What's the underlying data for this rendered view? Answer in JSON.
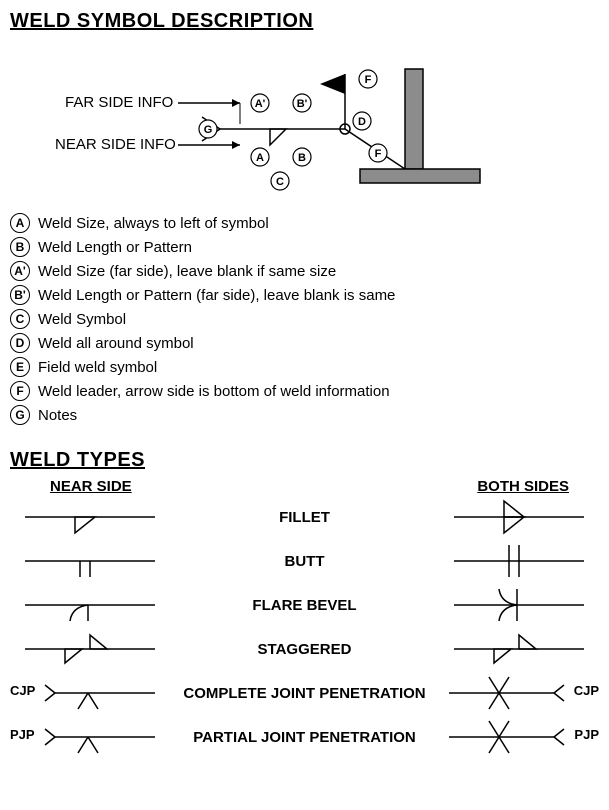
{
  "title1": "WELD SYMBOL DESCRIPTION",
  "title2": "WELD TYPES",
  "diagram": {
    "far_label": "FAR SIDE INFO",
    "near_label": "NEAR SIDE INFO",
    "bubbles": {
      "A": "A",
      "Ap": "A'",
      "B": "B",
      "Bp": "B'",
      "C": "C",
      "D": "D",
      "F": "F",
      "G": "G"
    },
    "joint_fill": "#8c8c8c",
    "flag_fill": "#000000"
  },
  "legend": [
    {
      "k": "A",
      "t": "Weld Size, always to left of symbol"
    },
    {
      "k": "B",
      "t": "Weld Length or Pattern"
    },
    {
      "k": "A'",
      "t": "Weld Size (far side), leave blank if same size"
    },
    {
      "k": "B'",
      "t": "Weld Length or Pattern (far side), leave blank is same"
    },
    {
      "k": "C",
      "t": "Weld Symbol"
    },
    {
      "k": "D",
      "t": "Weld all around symbol"
    },
    {
      "k": "E",
      "t": "Field weld symbol"
    },
    {
      "k": "F",
      "t": "Weld leader, arrow side is bottom of weld information"
    },
    {
      "k": "G",
      "t": "Notes"
    }
  ],
  "types": {
    "col_left": "NEAR SIDE",
    "col_right": "BOTH  SIDES",
    "rows": [
      {
        "name": "FILLET"
      },
      {
        "name": "BUTT"
      },
      {
        "name": "FLARE BEVEL"
      },
      {
        "name": "STAGGERED"
      },
      {
        "name": "COMPLETE JOINT PENETRATION",
        "left_lbl": "CJP",
        "right_lbl": "CJP"
      },
      {
        "name": "PARTIAL JOINT PENETRATION",
        "left_lbl": "PJP",
        "right_lbl": "PJP"
      }
    ]
  },
  "style": {
    "stroke": "#000000",
    "stroke_w": 1.5,
    "font": "Arial"
  }
}
